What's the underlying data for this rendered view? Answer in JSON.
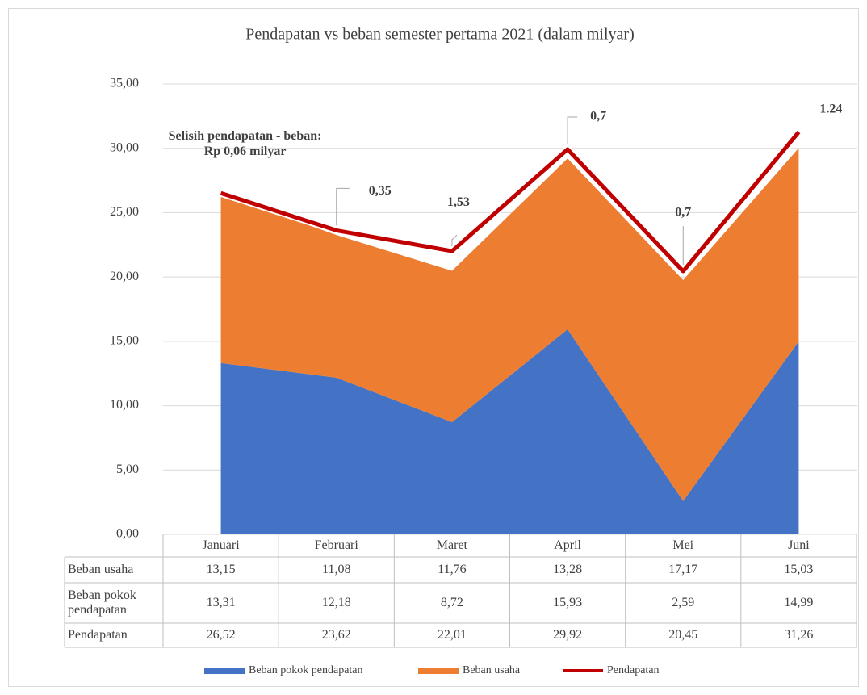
{
  "chart_data": {
    "type": "area",
    "title": "Pendapatan vs beban semester pertama 2021 (dalam milyar)",
    "categories": [
      "Januari",
      "Februari",
      "Maret",
      "April",
      "Mei",
      "Juni"
    ],
    "series": [
      {
        "name": "Beban pokok pendapatan",
        "color": "#4472c4",
        "kind": "area",
        "values": [
          13.31,
          12.18,
          8.72,
          15.93,
          2.59,
          14.99
        ],
        "value_labels": [
          "13,31",
          "12,18",
          "8,72",
          "15,93",
          "2,59",
          "14,99"
        ]
      },
      {
        "name": "Beban usaha",
        "color": "#ed7d31",
        "kind": "area",
        "values": [
          13.15,
          11.08,
          11.76,
          13.28,
          17.17,
          15.03
        ],
        "value_labels": [
          "13,15",
          "11,08",
          "11,76",
          "13,28",
          "17,17",
          "15,03"
        ]
      },
      {
        "name": "Pendapatan",
        "color": "#c00000",
        "kind": "line",
        "values": [
          26.52,
          23.62,
          22.01,
          29.92,
          20.45,
          31.26
        ],
        "value_labels": [
          "26,52",
          "23,62",
          "22,01",
          "29,92",
          "20,45",
          "31,26"
        ]
      }
    ],
    "annotations": [
      "Selisih pendapatan - beban: Rp 0,06 milyar",
      "0,35",
      "1,53",
      "0,7",
      "0,7",
      "1.24"
    ],
    "ylim": [
      0,
      35
    ],
    "yticks": [
      {
        "value": 0,
        "label": "0,00"
      },
      {
        "value": 5,
        "label": "5,00"
      },
      {
        "value": 10,
        "label": "10,00"
      },
      {
        "value": 15,
        "label": "15,00"
      },
      {
        "value": 20,
        "label": "20,00"
      },
      {
        "value": 25,
        "label": "25,00"
      },
      {
        "value": 30,
        "label": "30,00"
      },
      {
        "value": 35,
        "label": "35,00"
      }
    ],
    "grid": true,
    "legend": "bottom"
  }
}
